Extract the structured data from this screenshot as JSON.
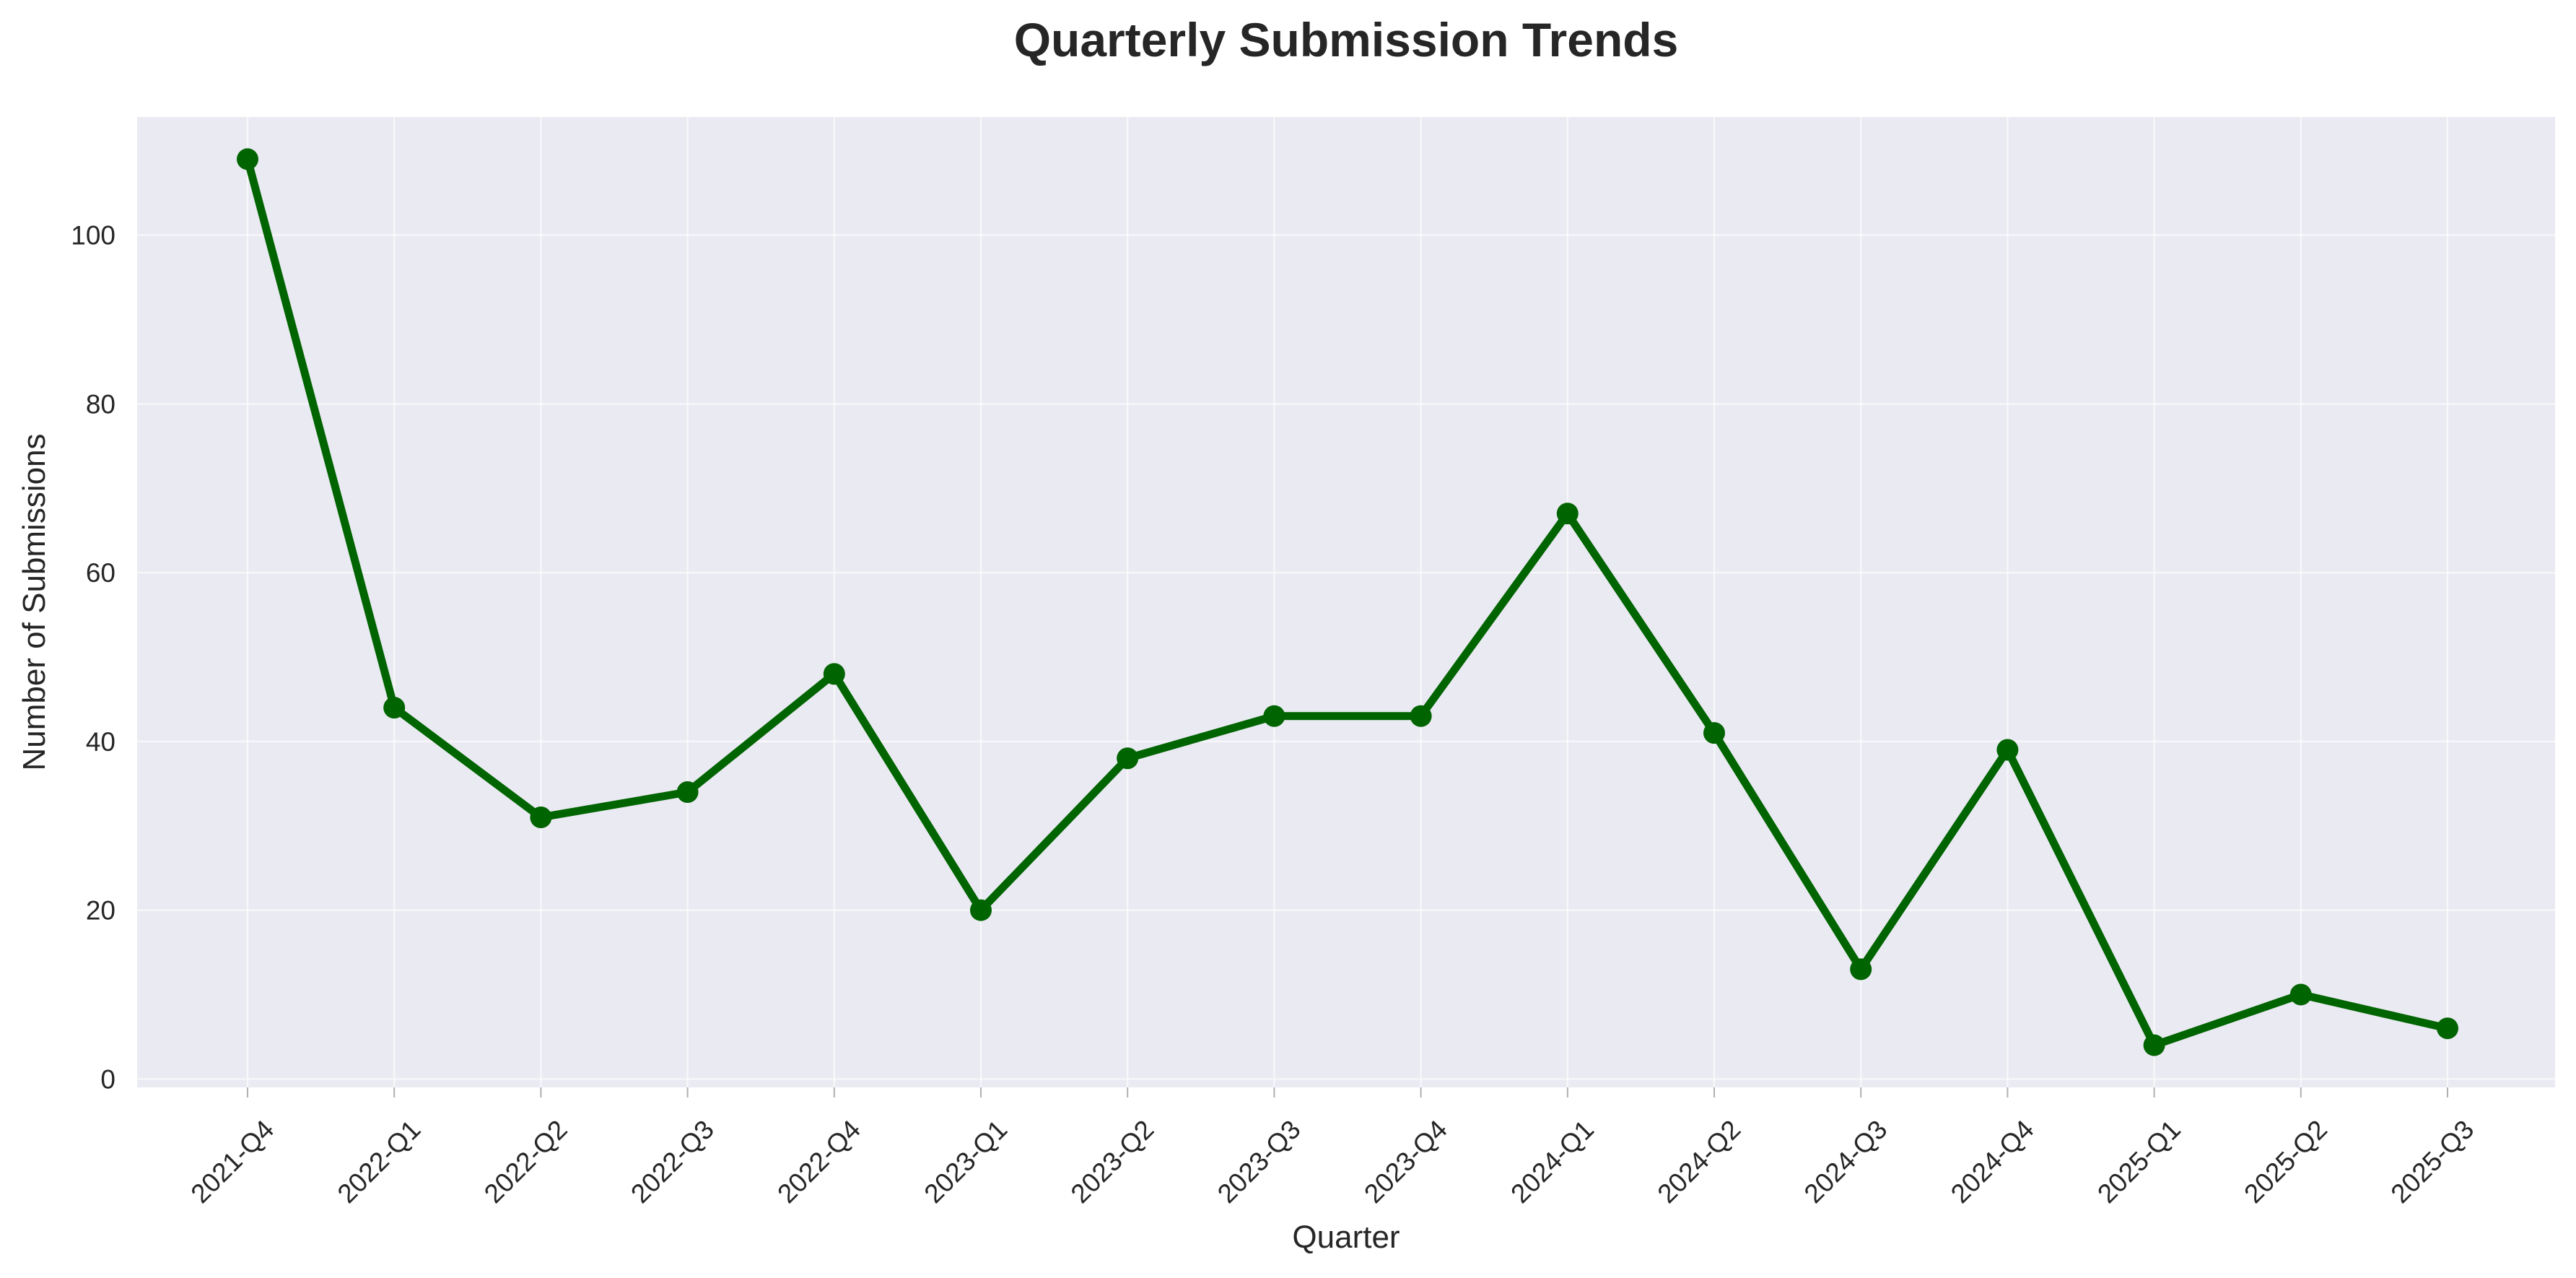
{
  "chart_data": {
    "type": "line",
    "title": "Quarterly Submission Trends",
    "xlabel": "Quarter",
    "ylabel": "Number of Submissions",
    "categories": [
      "2021-Q4",
      "2022-Q1",
      "2022-Q2",
      "2022-Q3",
      "2022-Q4",
      "2023-Q1",
      "2023-Q2",
      "2023-Q3",
      "2023-Q4",
      "2024-Q1",
      "2024-Q2",
      "2024-Q3",
      "2024-Q4",
      "2025-Q1",
      "2025-Q2",
      "2025-Q3"
    ],
    "series": [
      {
        "values": [
          109,
          44,
          31,
          34,
          48,
          20,
          38,
          43,
          43,
          67,
          41,
          13,
          39,
          4,
          10,
          6
        ]
      }
    ],
    "yticks": [
      0,
      20,
      40,
      60,
      80,
      100
    ],
    "ylim": [
      -1,
      114
    ],
    "grid": true,
    "line_color": "#006400",
    "plot_background": "#eaeaf2",
    "grid_color": "#ffffff"
  }
}
